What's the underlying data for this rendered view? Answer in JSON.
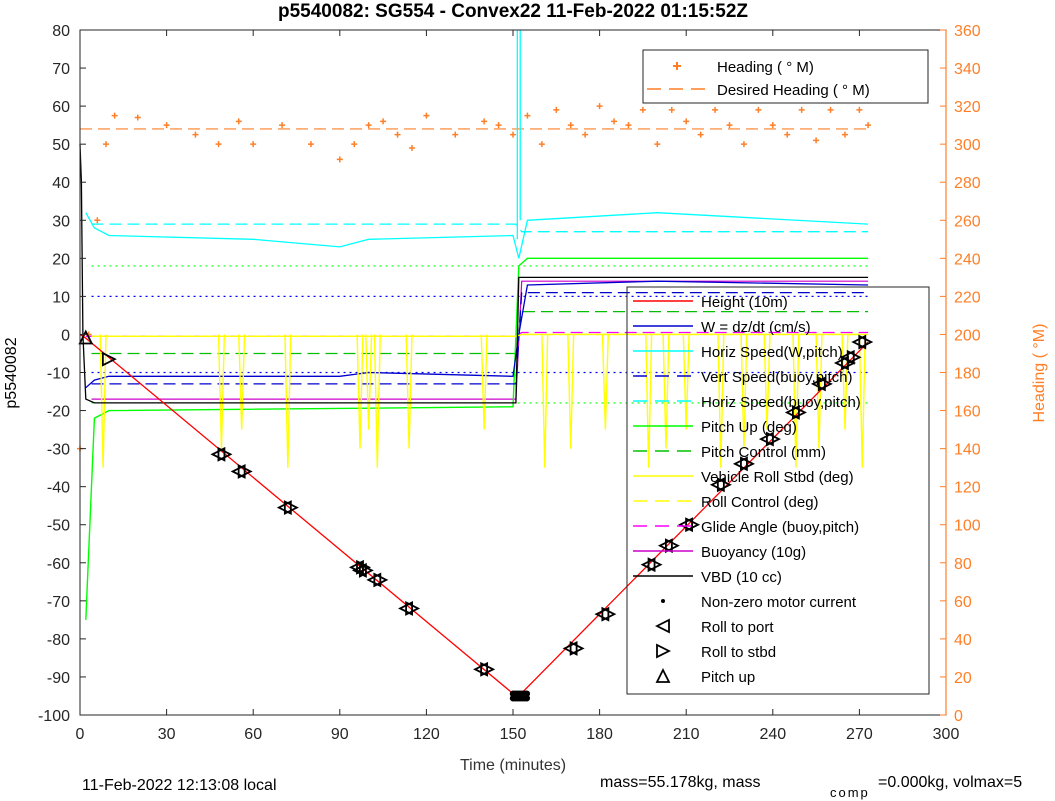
{
  "chart_data": {
    "type": "line",
    "title": "p5540082: SG554 - Convex22 11-Feb-2022 01:15:52Z",
    "xlabel": "Time (minutes)",
    "ylabel": "p5540082",
    "y2label": "Heading (  °M)",
    "xlim": [
      0,
      300
    ],
    "ylim": [
      -100,
      80
    ],
    "y2lim": [
      0,
      360
    ],
    "xticks": [
      0,
      30,
      60,
      90,
      120,
      150,
      180,
      210,
      240,
      270,
      300
    ],
    "yticks": [
      -100,
      -90,
      -80,
      -70,
      -60,
      -50,
      -40,
      -30,
      -20,
      -10,
      0,
      10,
      20,
      30,
      40,
      50,
      60,
      70,
      80
    ],
    "y2ticks": [
      0,
      20,
      40,
      60,
      80,
      100,
      120,
      140,
      160,
      180,
      200,
      220,
      240,
      260,
      280,
      300,
      320,
      340,
      360
    ],
    "grid": false,
    "footer_left": "11-Feb-2022 12:13:08 local",
    "footer_right": "mass=55.178kg, mass",
    "footer_sub": "comp",
    "footer_right2": "=0.000kg, volmax=5",
    "heading_legend": [
      {
        "name": "Heading (  ° M)",
        "style": "marker-plus",
        "color": "#FF7F27"
      },
      {
        "name": "Desired Heading (    ° M)",
        "style": "dash",
        "color": "#FF7F27"
      }
    ],
    "legend": [
      {
        "name": "Height (10m)",
        "style": "line",
        "color": "#FF0000"
      },
      {
        "name": "W = dz/dt (cm/s)",
        "style": "line",
        "color": "#0000CD"
      },
      {
        "name": "Horiz Speed(W,pitch)",
        "style": "line",
        "color": "#00FFFF"
      },
      {
        "name": "Vert Speed(buoy,pitch)",
        "style": "dash",
        "color": "#0000CD"
      },
      {
        "name": "Horiz Speed(buoy,pitch)",
        "style": "dash",
        "color": "#00FFFF"
      },
      {
        "name": "Pitch Up (deg)",
        "style": "line",
        "color": "#00FF00"
      },
      {
        "name": "Pitch Control (mm)",
        "style": "dash",
        "color": "#00C000"
      },
      {
        "name": "Vehicle Roll Stbd (deg)",
        "style": "line",
        "color": "#FFFF00"
      },
      {
        "name": "Roll Control (deg)",
        "style": "dash",
        "color": "#FFFF00"
      },
      {
        "name": "Glide Angle (buoy,pitch)",
        "style": "dash",
        "color": "#FF00FF"
      },
      {
        "name": "Buoyancy (10g)",
        "style": "line",
        "color": "#CC00CC"
      },
      {
        "name": "VBD (10 cc)",
        "style": "line",
        "color": "#000000"
      },
      {
        "name": "Non-zero motor current",
        "style": "dot",
        "color": "#000000"
      },
      {
        "name": "Roll to port",
        "style": "tri-left",
        "color": "#000000"
      },
      {
        "name": "Roll to stbd",
        "style": "tri-right",
        "color": "#000000"
      },
      {
        "name": "Pitch up",
        "style": "tri-up",
        "color": "#000000"
      }
    ],
    "height_profile": {
      "x": [
        0,
        2,
        151,
        152,
        273
      ],
      "y": [
        0,
        -1,
        -95,
        -95,
        -2
      ]
    },
    "vert_speed_w": {
      "x": [
        2,
        5,
        10,
        90,
        100,
        150,
        152,
        155,
        200,
        273
      ],
      "y": [
        -14,
        -12,
        -11,
        -11,
        -10,
        -11,
        0,
        13,
        14,
        13
      ]
    },
    "horiz_speed_w": {
      "x": [
        2,
        5,
        10,
        60,
        90,
        100,
        150,
        152,
        155,
        200,
        273
      ],
      "y": [
        32,
        28,
        26,
        25,
        23,
        25,
        26,
        20,
        30,
        32,
        29
      ]
    },
    "vert_speed_buoy": {
      "x": [
        4,
        151,
        153,
        273
      ],
      "y": [
        -13,
        -13,
        11,
        11
      ]
    },
    "horiz_speed_buoy": {
      "x": [
        4,
        151,
        153,
        273
      ],
      "y": [
        29,
        29,
        27,
        27
      ]
    },
    "pitch_up": {
      "x": [
        2,
        5,
        10,
        150,
        152,
        155,
        273
      ],
      "y": [
        -75,
        -22,
        -20,
        -19,
        18,
        20,
        20
      ]
    },
    "pitch_control": {
      "x": [
        4,
        151,
        153,
        273
      ],
      "y": [
        -5,
        -5,
        6,
        6
      ]
    },
    "roll_stbd_base": {
      "x": [
        5,
        151,
        153,
        273
      ],
      "y": [
        -0.5,
        -0.5,
        0,
        0
      ]
    },
    "roll_spikes": [
      8,
      49,
      56,
      72,
      97,
      100,
      103,
      114,
      140,
      161,
      170,
      182,
      197,
      203,
      210,
      222,
      230,
      238,
      248,
      256,
      265,
      271
    ],
    "roll_control": {
      "x": [
        4,
        151,
        153,
        273
      ],
      "y": [
        -0.5,
        -0.5,
        0,
        0
      ]
    },
    "glide_angle": {
      "x": [
        2,
        151,
        153,
        273
      ],
      "y": [
        -0.5,
        -0.5,
        0.5,
        0.5
      ]
    },
    "buoyancy": {
      "x": [
        4,
        151,
        153,
        273
      ],
      "y": [
        -17,
        -17,
        14,
        14
      ]
    },
    "vbd": {
      "x": [
        0,
        0.5,
        1,
        2,
        5,
        151,
        152,
        273
      ],
      "y": [
        50,
        40,
        0,
        -17,
        -18,
        -18,
        15,
        15
      ]
    },
    "desired_heading_ticks": [
      53.5,
      53.7
    ],
    "ref_lines_dotted": [
      {
        "y": 18,
        "color": "#00FF00"
      },
      {
        "y": 10,
        "color": "#0000FF"
      },
      {
        "y": -10,
        "color": "#0000FF"
      },
      {
        "y": -18,
        "color": "#00FF00"
      }
    ],
    "heading_x": [
      0,
      3,
      6,
      9,
      12,
      20,
      30,
      40,
      48,
      55,
      60,
      70,
      80,
      90,
      95,
      100,
      105,
      110,
      115,
      120,
      130,
      140,
      145,
      150,
      155,
      160,
      165,
      170,
      175,
      180,
      185,
      190,
      195,
      200,
      205,
      210,
      215,
      220,
      225,
      230,
      235,
      240,
      245,
      250,
      255,
      260,
      265,
      270,
      273
    ],
    "heading_y": [
      140,
      200,
      260,
      300,
      315,
      314,
      310,
      305,
      300,
      312,
      300,
      310,
      300,
      292,
      300,
      310,
      312,
      305,
      298,
      315,
      305,
      312,
      310,
      305,
      315,
      300,
      318,
      310,
      305,
      320,
      312,
      310,
      318,
      300,
      318,
      312,
      305,
      318,
      310,
      300,
      318,
      310,
      305,
      318,
      302,
      318,
      305,
      318,
      310
    ],
    "desired_heading": 308,
    "markers": {
      "pitch_up": [
        [
          2,
          -0.8
        ]
      ],
      "roll_to_stbd": [
        [
          10,
          -6.5
        ]
      ],
      "pairs": [
        [
          49,
          -31.5
        ],
        [
          56,
          -36
        ],
        [
          72,
          -45.5
        ],
        [
          97,
          -61.2
        ],
        [
          98,
          -62
        ],
        [
          103,
          -64.5
        ],
        [
          114,
          -72
        ],
        [
          140,
          -88
        ],
        [
          171,
          -82.5
        ],
        [
          182,
          -73.5
        ],
        [
          198,
          -60.5
        ],
        [
          204,
          -55.5
        ],
        [
          211,
          -50
        ],
        [
          222,
          -39.5
        ],
        [
          230,
          -34
        ],
        [
          239,
          -27.5
        ],
        [
          248,
          -20.5
        ],
        [
          257,
          -13
        ],
        [
          265,
          -7.5
        ],
        [
          267,
          -6
        ],
        [
          271,
          -2
        ]
      ]
    }
  }
}
